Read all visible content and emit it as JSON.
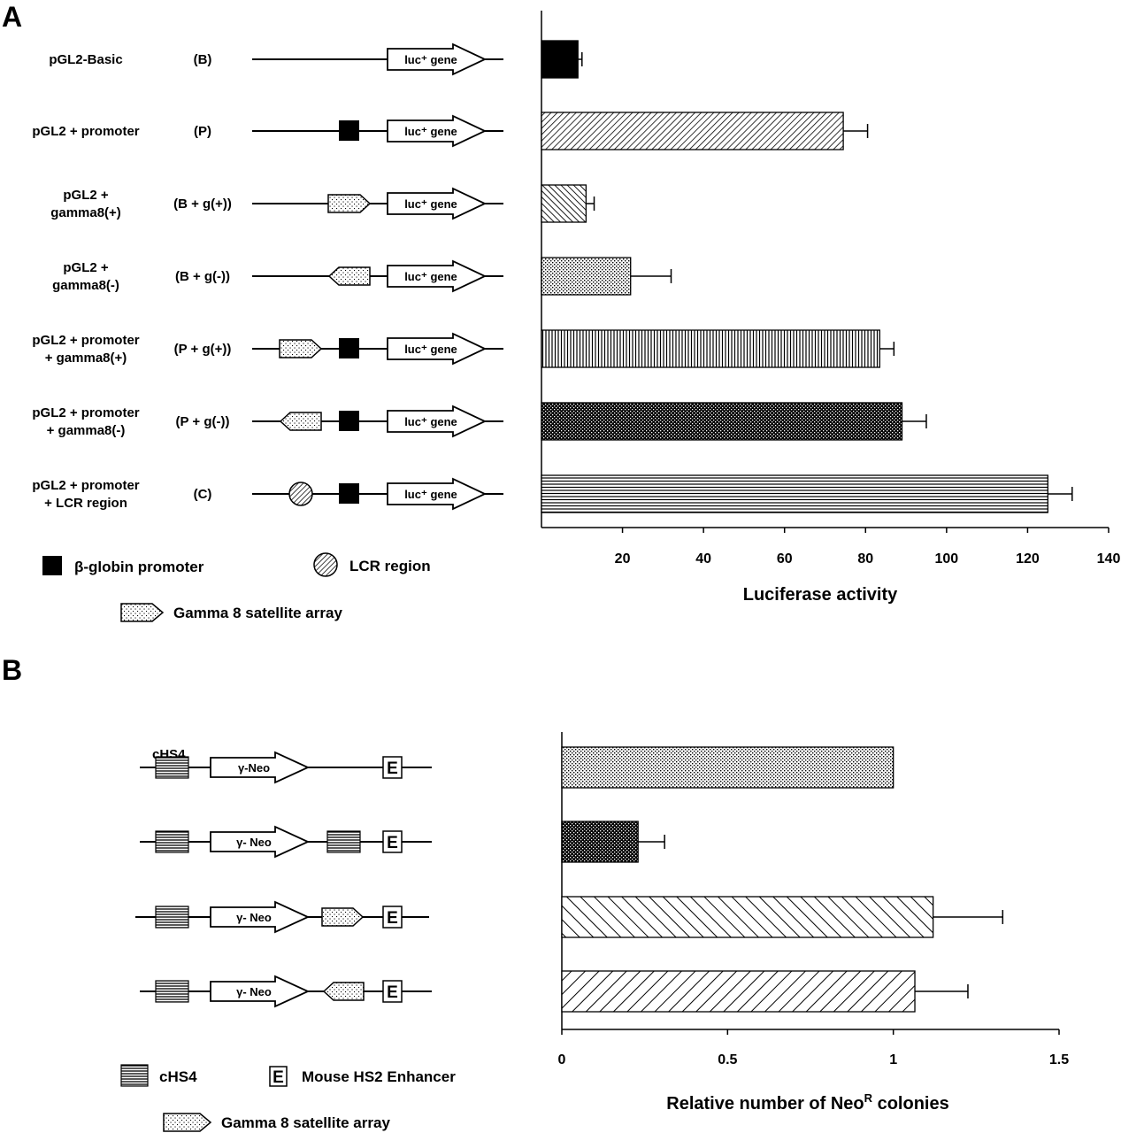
{
  "panel_a": {
    "letter": "A",
    "constructs": [
      {
        "name": [
          "pGL2-Basic"
        ],
        "code": "(B)",
        "elements": [],
        "luc": "luc⁺ gene"
      },
      {
        "name": [
          "pGL2 + promoter"
        ],
        "code": "(P)",
        "elements": [
          "promoter"
        ],
        "luc": "luc⁺ gene"
      },
      {
        "name": [
          "pGL2 +",
          "gamma8(+)"
        ],
        "code": "(B + g(+))",
        "elements": [
          "gamma-plus"
        ],
        "luc": "luc⁺ gene"
      },
      {
        "name": [
          "pGL2 +",
          "gamma8(-)"
        ],
        "code": "(B + g(-))",
        "elements": [
          "gamma-minus"
        ],
        "luc": "luc⁺ gene"
      },
      {
        "name": [
          "pGL2 + promoter",
          "+ gamma8(+)"
        ],
        "code": "(P + g(+))",
        "elements": [
          "gamma-plus",
          "promoter"
        ],
        "luc": "luc⁺ gene"
      },
      {
        "name": [
          "pGL2 + promoter",
          "+ gamma8(-)"
        ],
        "code": "(P + g(-))",
        "elements": [
          "gamma-minus",
          "promoter"
        ],
        "luc": "luc⁺ gene"
      },
      {
        "name": [
          "pGL2 + promoter",
          "+ LCR region"
        ],
        "code": "(C)",
        "elements": [
          "lcr",
          "promoter"
        ],
        "luc": "luc⁺ gene"
      }
    ],
    "legend": {
      "promoter": "β-globin promoter",
      "lcr": "LCR region",
      "gamma": "Gamma 8 satellite array"
    }
  },
  "panel_b": {
    "letter": "B",
    "first_label": "cHS4",
    "neo_labels": [
      "γ-Neo",
      "γ- Neo",
      "γ- Neo",
      "γ- Neo"
    ],
    "constructs": [
      {
        "elements": [
          "chs4",
          "neo",
          "spacer",
          "E"
        ]
      },
      {
        "elements": [
          "chs4",
          "neo",
          "chs4",
          "E"
        ]
      },
      {
        "elements": [
          "chs4",
          "neo",
          "gamma-plus",
          "E"
        ]
      },
      {
        "elements": [
          "chs4",
          "neo",
          "gamma-minus",
          "E"
        ]
      }
    ],
    "enhancer_letter": "E",
    "legend": {
      "chs4": "cHS4",
      "enhancer": "Mouse HS2 Enhancer",
      "gamma": "Gamma 8  satellite array"
    }
  },
  "chart_data": [
    {
      "type": "bar",
      "orientation": "horizontal",
      "xlabel": "Luciferase activity",
      "xlim": [
        0,
        140
      ],
      "xticks": [
        20,
        40,
        60,
        80,
        100,
        120,
        140
      ],
      "categories": [
        "pGL2-Basic",
        "pGL2 + promoter",
        "pGL2 + gamma8(+)",
        "pGL2 + gamma8(-)",
        "pGL2 + promoter + gamma8(+)",
        "pGL2 + promoter + gamma8(-)",
        "pGL2 + promoter + LCR region"
      ],
      "values": [
        9,
        74.5,
        11,
        22,
        83.5,
        89,
        125
      ],
      "errors": [
        1,
        6,
        2,
        10,
        3.5,
        6,
        6
      ],
      "fills": [
        "solid",
        "diag-dense",
        "diag-back",
        "dots-light",
        "vertical",
        "dots-dark",
        "horizontal"
      ],
      "grid": false
    },
    {
      "type": "bar",
      "orientation": "horizontal",
      "xlabel": "Relative number of Neo",
      "xlabel_sup": "R",
      "xlabel_suffix": " colonies",
      "xlim": [
        0,
        1.5
      ],
      "xticks": [
        "0",
        "0.5",
        "1",
        "1.5"
      ],
      "values": [
        1.0,
        0.23,
        1.12,
        1.065
      ],
      "errors": [
        0,
        0.08,
        0.21,
        0.16
      ],
      "fills": [
        "dots-light",
        "dots-dark",
        "diag-back-wide",
        "diag-wide"
      ],
      "grid": false
    }
  ]
}
